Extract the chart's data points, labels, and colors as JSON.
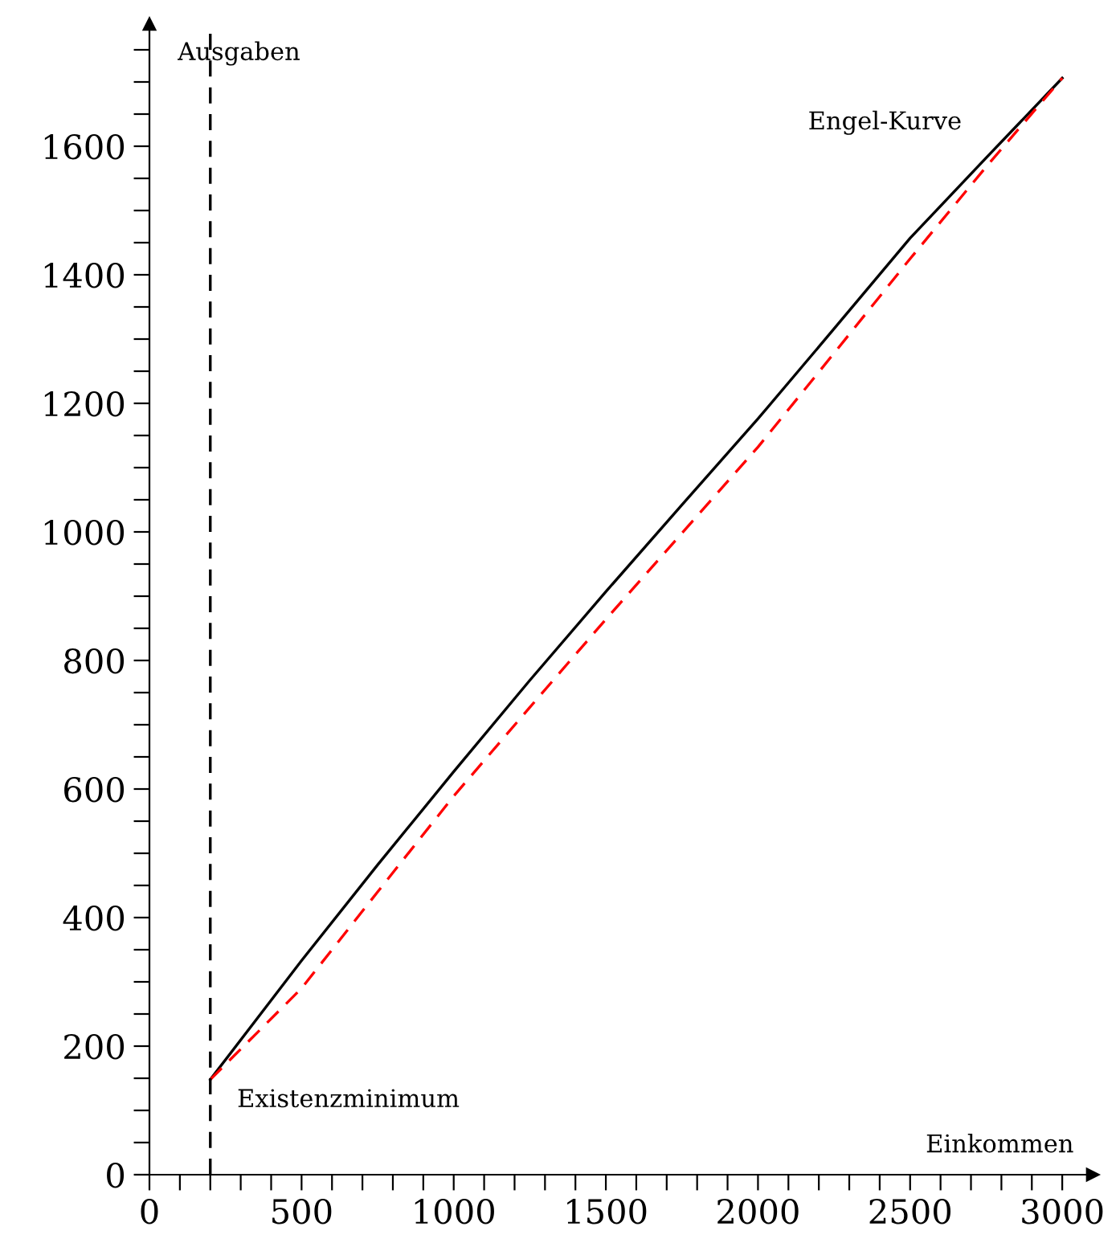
{
  "chart_data": {
    "type": "line",
    "xlabel": "Einkommen",
    "ylabel": "Ausgaben",
    "xlim": [
      0,
      3100
    ],
    "ylim": [
      0,
      1790
    ],
    "xticks": [
      0,
      {
        "value": 100,
        "label": null
      },
      {
        "value": 200,
        "label": null
      },
      {
        "value": 300,
        "label": null
      },
      {
        "value": 400,
        "label": null
      },
      500,
      {
        "value": 600,
        "label": null
      },
      {
        "value": 700,
        "label": null
      },
      {
        "value": 800,
        "label": null
      },
      {
        "value": 900,
        "label": null
      },
      1000,
      {
        "value": 1100,
        "label": null
      },
      {
        "value": 1200,
        "label": null
      },
      {
        "value": 1300,
        "label": null
      },
      {
        "value": 1400,
        "label": null
      },
      1500,
      {
        "value": 1600,
        "label": null
      },
      {
        "value": 1700,
        "label": null
      },
      {
        "value": 1800,
        "label": null
      },
      {
        "value": 1900,
        "label": null
      },
      2000,
      {
        "value": 2100,
        "label": null
      },
      {
        "value": 2200,
        "label": null
      },
      {
        "value": 2300,
        "label": null
      },
      {
        "value": 2400,
        "label": null
      },
      2500,
      {
        "value": 2600,
        "label": null
      },
      {
        "value": 2700,
        "label": null
      },
      {
        "value": 2800,
        "label": null
      },
      {
        "value": 2900,
        "label": null
      },
      3000
    ],
    "yticks": [
      0,
      {
        "value": 50,
        "label": null
      },
      {
        "value": 100,
        "label": null
      },
      {
        "value": 150,
        "label": null
      },
      200,
      {
        "value": 250,
        "label": null
      },
      {
        "value": 300,
        "label": null
      },
      {
        "value": 350,
        "label": null
      },
      400,
      {
        "value": 450,
        "label": null
      },
      {
        "value": 500,
        "label": null
      },
      {
        "value": 550,
        "label": null
      },
      600,
      {
        "value": 650,
        "label": null
      },
      {
        "value": 700,
        "label": null
      },
      {
        "value": 750,
        "label": null
      },
      800,
      {
        "value": 850,
        "label": null
      },
      {
        "value": 900,
        "label": null
      },
      {
        "value": 950,
        "label": null
      },
      1000,
      {
        "value": 1050,
        "label": null
      },
      {
        "value": 1100,
        "label": null
      },
      {
        "value": 1150,
        "label": null
      },
      1200,
      {
        "value": 1250,
        "label": null
      },
      {
        "value": 1300,
        "label": null
      },
      {
        "value": 1350,
        "label": null
      },
      1400,
      {
        "value": 1450,
        "label": null
      },
      {
        "value": 1500,
        "label": null
      },
      {
        "value": 1550,
        "label": null
      },
      1600,
      {
        "value": 1650,
        "label": null
      },
      {
        "value": 1700,
        "label": null
      },
      {
        "value": 1750,
        "label": null
      }
    ],
    "grid": false,
    "legend": false,
    "series": [
      {
        "name": "Engel-Kurve",
        "color": "#000000",
        "line_style": "solid",
        "x": [
          200,
          500,
          750,
          1000,
          1250,
          1500,
          1750,
          2000,
          2250,
          2500,
          2750,
          3000
        ],
        "values": [
          148,
          333,
          482,
          627,
          769,
          907,
          1042,
          1176,
          1316,
          1457,
          1582,
          1706
        ]
      },
      {
        "color": "#ff0000",
        "line_style": "dashed",
        "x": [
          200,
          500,
          750,
          1000,
          1250,
          1500,
          1750,
          2000,
          2250,
          2500,
          2750,
          3000
        ],
        "values": [
          148,
          290,
          440,
          589,
          727,
          864,
          998,
          1132,
          1278,
          1425,
          1568,
          1706
        ]
      }
    ],
    "ref_lines": [
      {
        "axis": "x",
        "value": 200,
        "label": "Existenzminimum",
        "color": "#000000",
        "line_style": "dashed"
      }
    ]
  }
}
